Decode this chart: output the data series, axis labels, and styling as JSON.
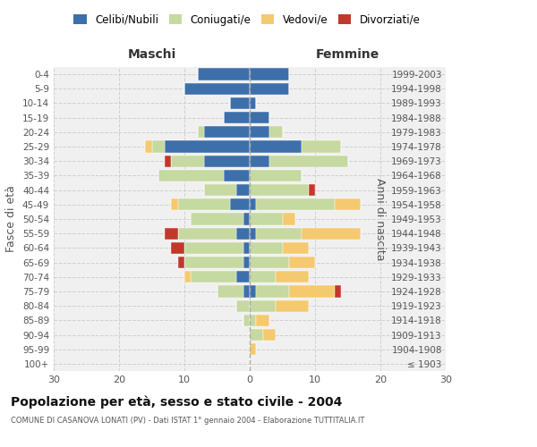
{
  "age_groups": [
    "100+",
    "95-99",
    "90-94",
    "85-89",
    "80-84",
    "75-79",
    "70-74",
    "65-69",
    "60-64",
    "55-59",
    "50-54",
    "45-49",
    "40-44",
    "35-39",
    "30-34",
    "25-29",
    "20-24",
    "15-19",
    "10-14",
    "5-9",
    "0-4"
  ],
  "birth_years": [
    "≤ 1903",
    "1904-1908",
    "1909-1913",
    "1914-1918",
    "1919-1923",
    "1924-1928",
    "1929-1933",
    "1934-1938",
    "1939-1943",
    "1944-1948",
    "1949-1953",
    "1954-1958",
    "1959-1963",
    "1964-1968",
    "1969-1973",
    "1974-1978",
    "1979-1983",
    "1984-1988",
    "1989-1993",
    "1994-1998",
    "1999-2003"
  ],
  "males": {
    "celibi": [
      0,
      0,
      0,
      0,
      0,
      1,
      2,
      1,
      1,
      2,
      1,
      3,
      2,
      4,
      7,
      13,
      7,
      4,
      3,
      10,
      8
    ],
    "coniugati": [
      0,
      0,
      0,
      1,
      2,
      4,
      7,
      9,
      9,
      9,
      8,
      8,
      5,
      10,
      5,
      2,
      1,
      0,
      0,
      0,
      0
    ],
    "vedovi": [
      0,
      0,
      0,
      0,
      0,
      0,
      1,
      0,
      0,
      0,
      0,
      1,
      0,
      0,
      0,
      1,
      0,
      0,
      0,
      0,
      0
    ],
    "divorziati": [
      0,
      0,
      0,
      0,
      0,
      0,
      0,
      1,
      2,
      2,
      0,
      0,
      0,
      0,
      1,
      0,
      0,
      0,
      0,
      0,
      0
    ]
  },
  "females": {
    "nubili": [
      0,
      0,
      0,
      0,
      0,
      1,
      0,
      0,
      0,
      1,
      0,
      1,
      0,
      0,
      3,
      8,
      3,
      3,
      1,
      6,
      6
    ],
    "coniugate": [
      0,
      0,
      2,
      1,
      4,
      5,
      4,
      6,
      5,
      7,
      5,
      12,
      9,
      8,
      12,
      6,
      2,
      0,
      0,
      0,
      0
    ],
    "vedove": [
      0,
      1,
      2,
      2,
      5,
      7,
      5,
      4,
      4,
      9,
      2,
      4,
      0,
      0,
      0,
      0,
      0,
      0,
      0,
      0,
      0
    ],
    "divorziate": [
      0,
      0,
      0,
      0,
      0,
      1,
      0,
      0,
      0,
      0,
      0,
      0,
      1,
      0,
      0,
      0,
      0,
      0,
      0,
      0,
      0
    ]
  },
  "colors": {
    "celibi": "#3d6faa",
    "coniugati": "#c5d9a0",
    "vedovi": "#f5c96e",
    "divorziati": "#c0392b"
  },
  "xlim": 30,
  "title": "Popolazione per età, sesso e stato civile - 2004",
  "subtitle": "COMUNE DI CASANOVA LONATI (PV) - Dati ISTAT 1° gennaio 2004 - Elaborazione TUTTITALIA.IT",
  "ylabel_left": "Fasce di età",
  "ylabel_right": "Anni di nascita",
  "xlabel_maschi": "Maschi",
  "xlabel_femmine": "Femmine",
  "bg_color": "#f0f0f0",
  "grid_color": "#cccccc"
}
